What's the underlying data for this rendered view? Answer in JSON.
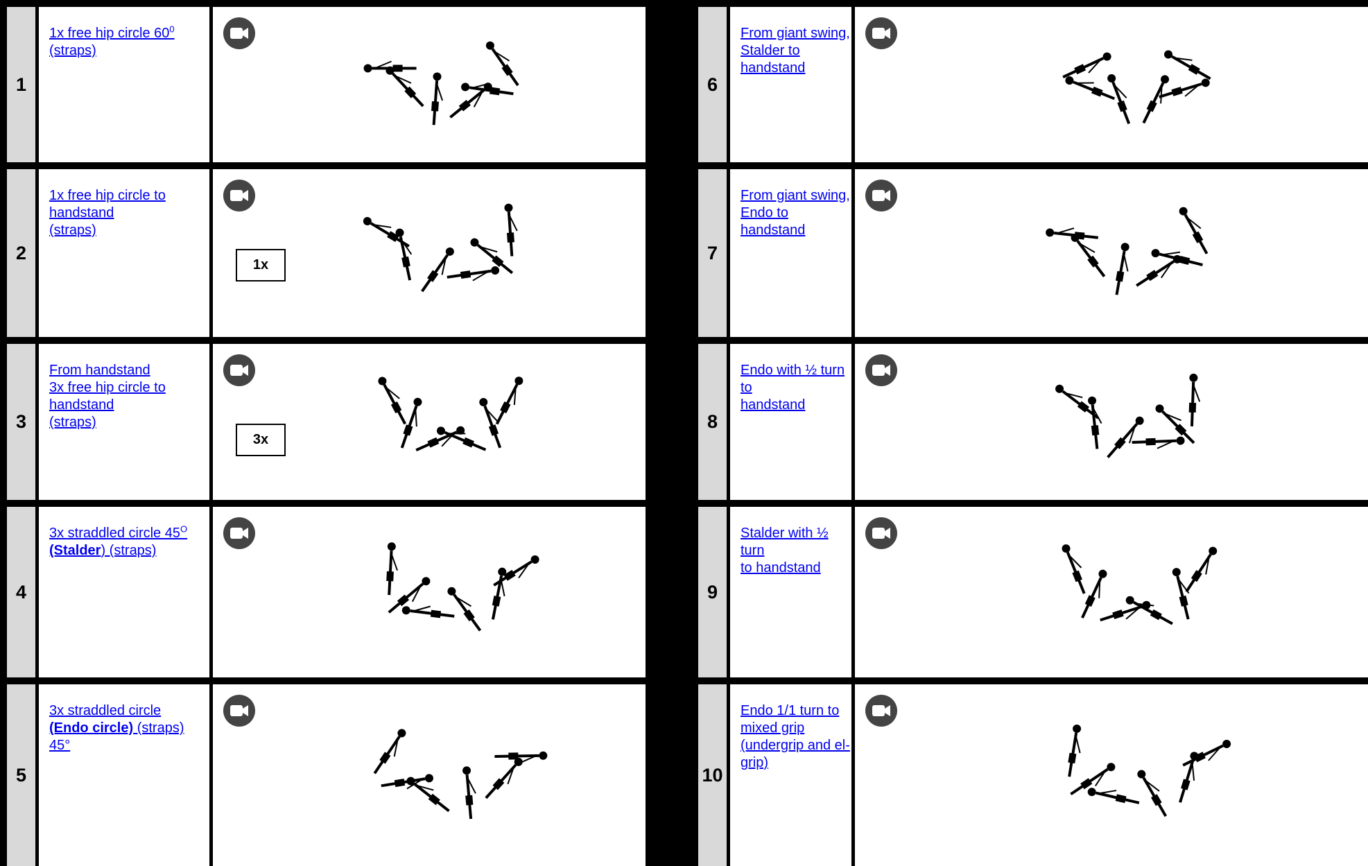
{
  "items": [
    {
      "number": "1",
      "lines": [
        [
          "1x free hip circle 60",
          {
            "text": "0",
            "style": "sup"
          }
        ],
        [
          "(straps)"
        ]
      ]
    },
    {
      "number": "2",
      "lines": [
        [
          "1x free hip circle to "
        ],
        [
          "handstand"
        ],
        [
          "(straps)"
        ]
      ],
      "box": "1x"
    },
    {
      "number": "3",
      "lines": [
        [
          "From handstand"
        ],
        [
          "3x free hip circle to "
        ],
        [
          "handstand"
        ],
        [
          "(straps)"
        ]
      ],
      "box": "3x"
    },
    {
      "number": "4",
      "lines": [
        [
          "3x straddled circle 45",
          {
            "text": "O",
            "style": "sup"
          }
        ],
        [
          {
            "text": "(Stalder",
            "style": "bold"
          },
          ") (straps)"
        ]
      ]
    },
    {
      "number": "5",
      "lines": [
        [
          "3x straddled circle"
        ],
        [
          {
            "text": "(Endo circle)",
            "style": "bold"
          },
          " (straps) "
        ],
        [
          "45°"
        ]
      ]
    },
    {
      "number": "6",
      "lines": [
        [
          "From giant swing, "
        ],
        [
          "Stalder to handstand"
        ]
      ]
    },
    {
      "number": "7",
      "lines": [
        [
          "From giant swing, "
        ],
        [
          "Endo to handstand"
        ]
      ]
    },
    {
      "number": "8",
      "lines": [
        [
          "Endo with ½ turn to "
        ],
        [
          "handstand"
        ]
      ]
    },
    {
      "number": "9",
      "lines": [
        [
          "Stalder with ½ turn "
        ],
        [
          "to handstand"
        ]
      ]
    },
    {
      "number": "10",
      "lines": [
        [
          "Endo 1/1 turn to "
        ],
        [
          "mixed grip "
        ],
        [
          "(undergrip and  el-"
        ],
        [
          "grip)"
        ]
      ]
    }
  ]
}
